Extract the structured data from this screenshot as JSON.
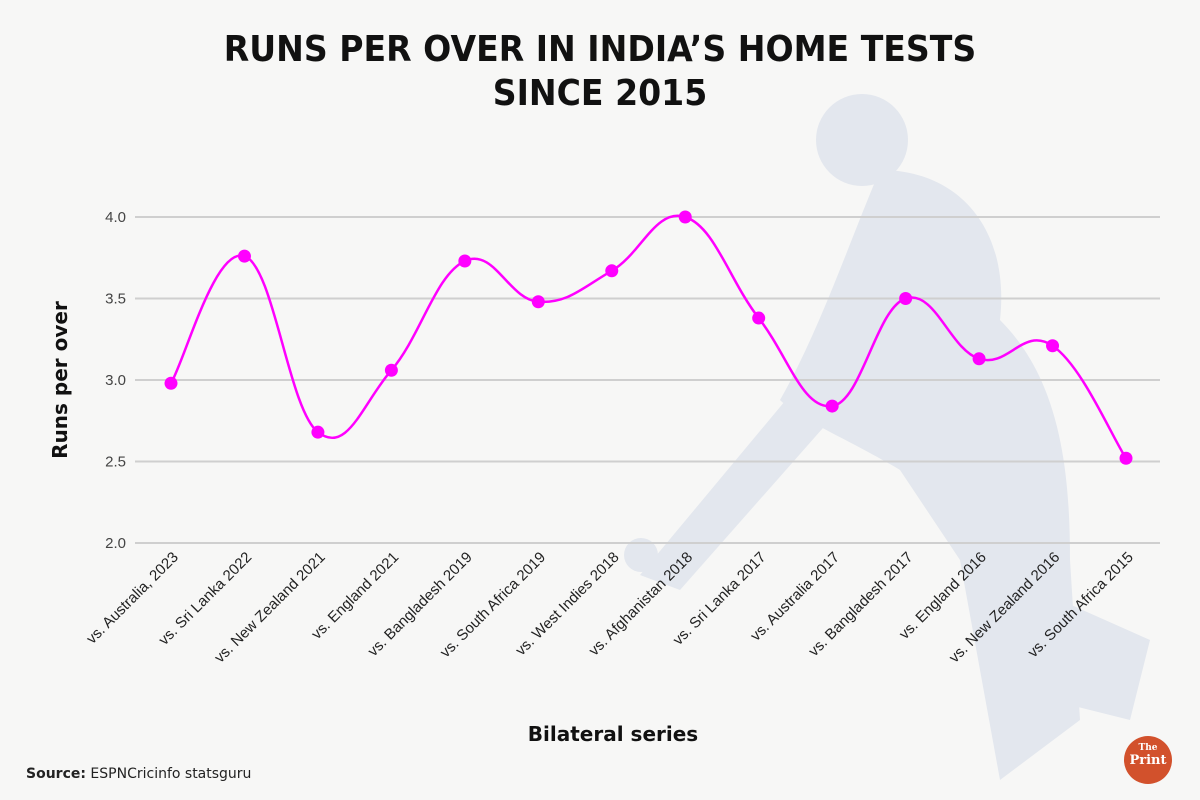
{
  "title_line1": "RUNS PER OVER IN INDIA’S HOME TESTS",
  "title_line2": "SINCE 2015",
  "source_label": "Source:",
  "source_text": "ESPNCricinfo statsguru",
  "logo": {
    "line1": "The",
    "line2": "Print",
    "color": "#d2512c"
  },
  "colors": {
    "line": "#ff00ff",
    "grid": "#cfcfcf",
    "watermark": "#e3e7ee"
  },
  "chart_data": {
    "type": "line",
    "title": "RUNS PER OVER IN INDIA’S HOME TESTS SINCE 2015",
    "xlabel": "Bilateral series",
    "ylabel": "Runs per over",
    "ylim": [
      2.0,
      4.0
    ],
    "yticks": [
      "2.0",
      "2.5",
      "3.0",
      "3.5",
      "4.0"
    ],
    "grid": true,
    "smooth": true,
    "categories": [
      "vs. Australia, 2023",
      "vs. Sri Lanka 2022",
      "vs. New Zealand 2021",
      "vs. England 2021",
      "vs. Bangladesh 2019",
      "vs. South Africa 2019",
      "vs. West Indies 2018",
      "vs. Afghanistan 2018",
      "vs. Sri Lanka 2017",
      "vs. Australia 2017",
      "vs. Bangladesh 2017",
      "vs. England 2016",
      "vs. New Zealand 2016",
      "vs. South Africa 2015"
    ],
    "series": [
      {
        "name": "Runs per over",
        "values": [
          2.98,
          3.76,
          2.68,
          3.06,
          3.73,
          3.48,
          3.67,
          4.0,
          3.38,
          2.84,
          3.5,
          3.13,
          3.21,
          2.52
        ]
      }
    ]
  }
}
